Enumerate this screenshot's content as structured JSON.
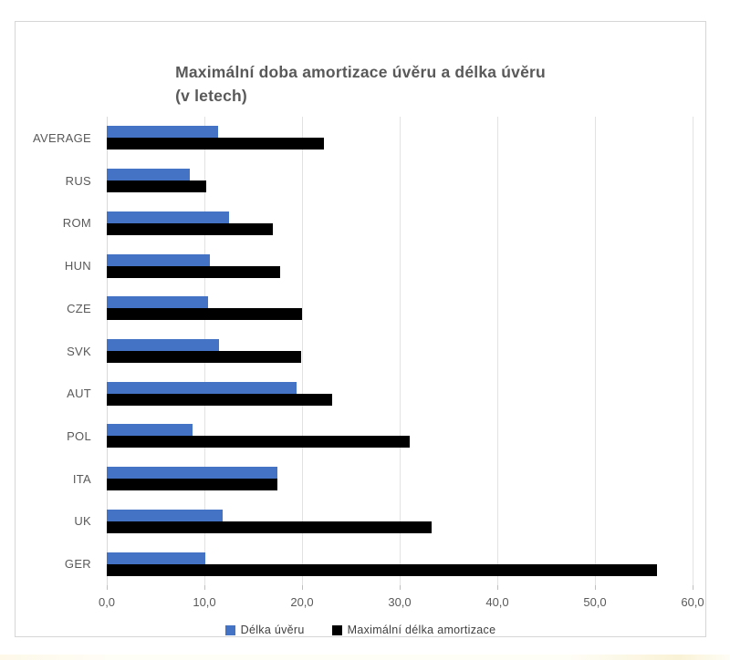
{
  "chart": {
    "title_line1": "Maximální doba amortizace úvěru a délka úvěru",
    "title_line2": "(v letech)"
  },
  "chart_data": {
    "type": "bar",
    "orientation": "horizontal",
    "title": "Maximální doba amortizace úvěru a délka úvěru (v letech)",
    "categories": [
      "AVERAGE",
      "RUS",
      "ROM",
      "HUN",
      "CZE",
      "SVK",
      "AUT",
      "POL",
      "ITA",
      "UK",
      "GER"
    ],
    "series": [
      {
        "name": "Délka úvěru",
        "color": "#4472c4",
        "values": [
          11.4,
          8.5,
          12.5,
          10.6,
          10.4,
          11.5,
          19.4,
          8.8,
          17.5,
          11.9,
          10.1
        ]
      },
      {
        "name": "Maximální délka amortizace",
        "color": "#000000",
        "values": [
          22.2,
          10.2,
          17.0,
          17.8,
          20.0,
          19.9,
          23.1,
          31.0,
          17.5,
          33.3,
          56.4
        ]
      }
    ],
    "xlim": [
      0,
      60
    ],
    "x_ticks": [
      "0,0",
      "10,0",
      "20,0",
      "30,0",
      "40,0",
      "50,0",
      "60,0"
    ],
    "grid": true,
    "legend_position": "bottom"
  }
}
